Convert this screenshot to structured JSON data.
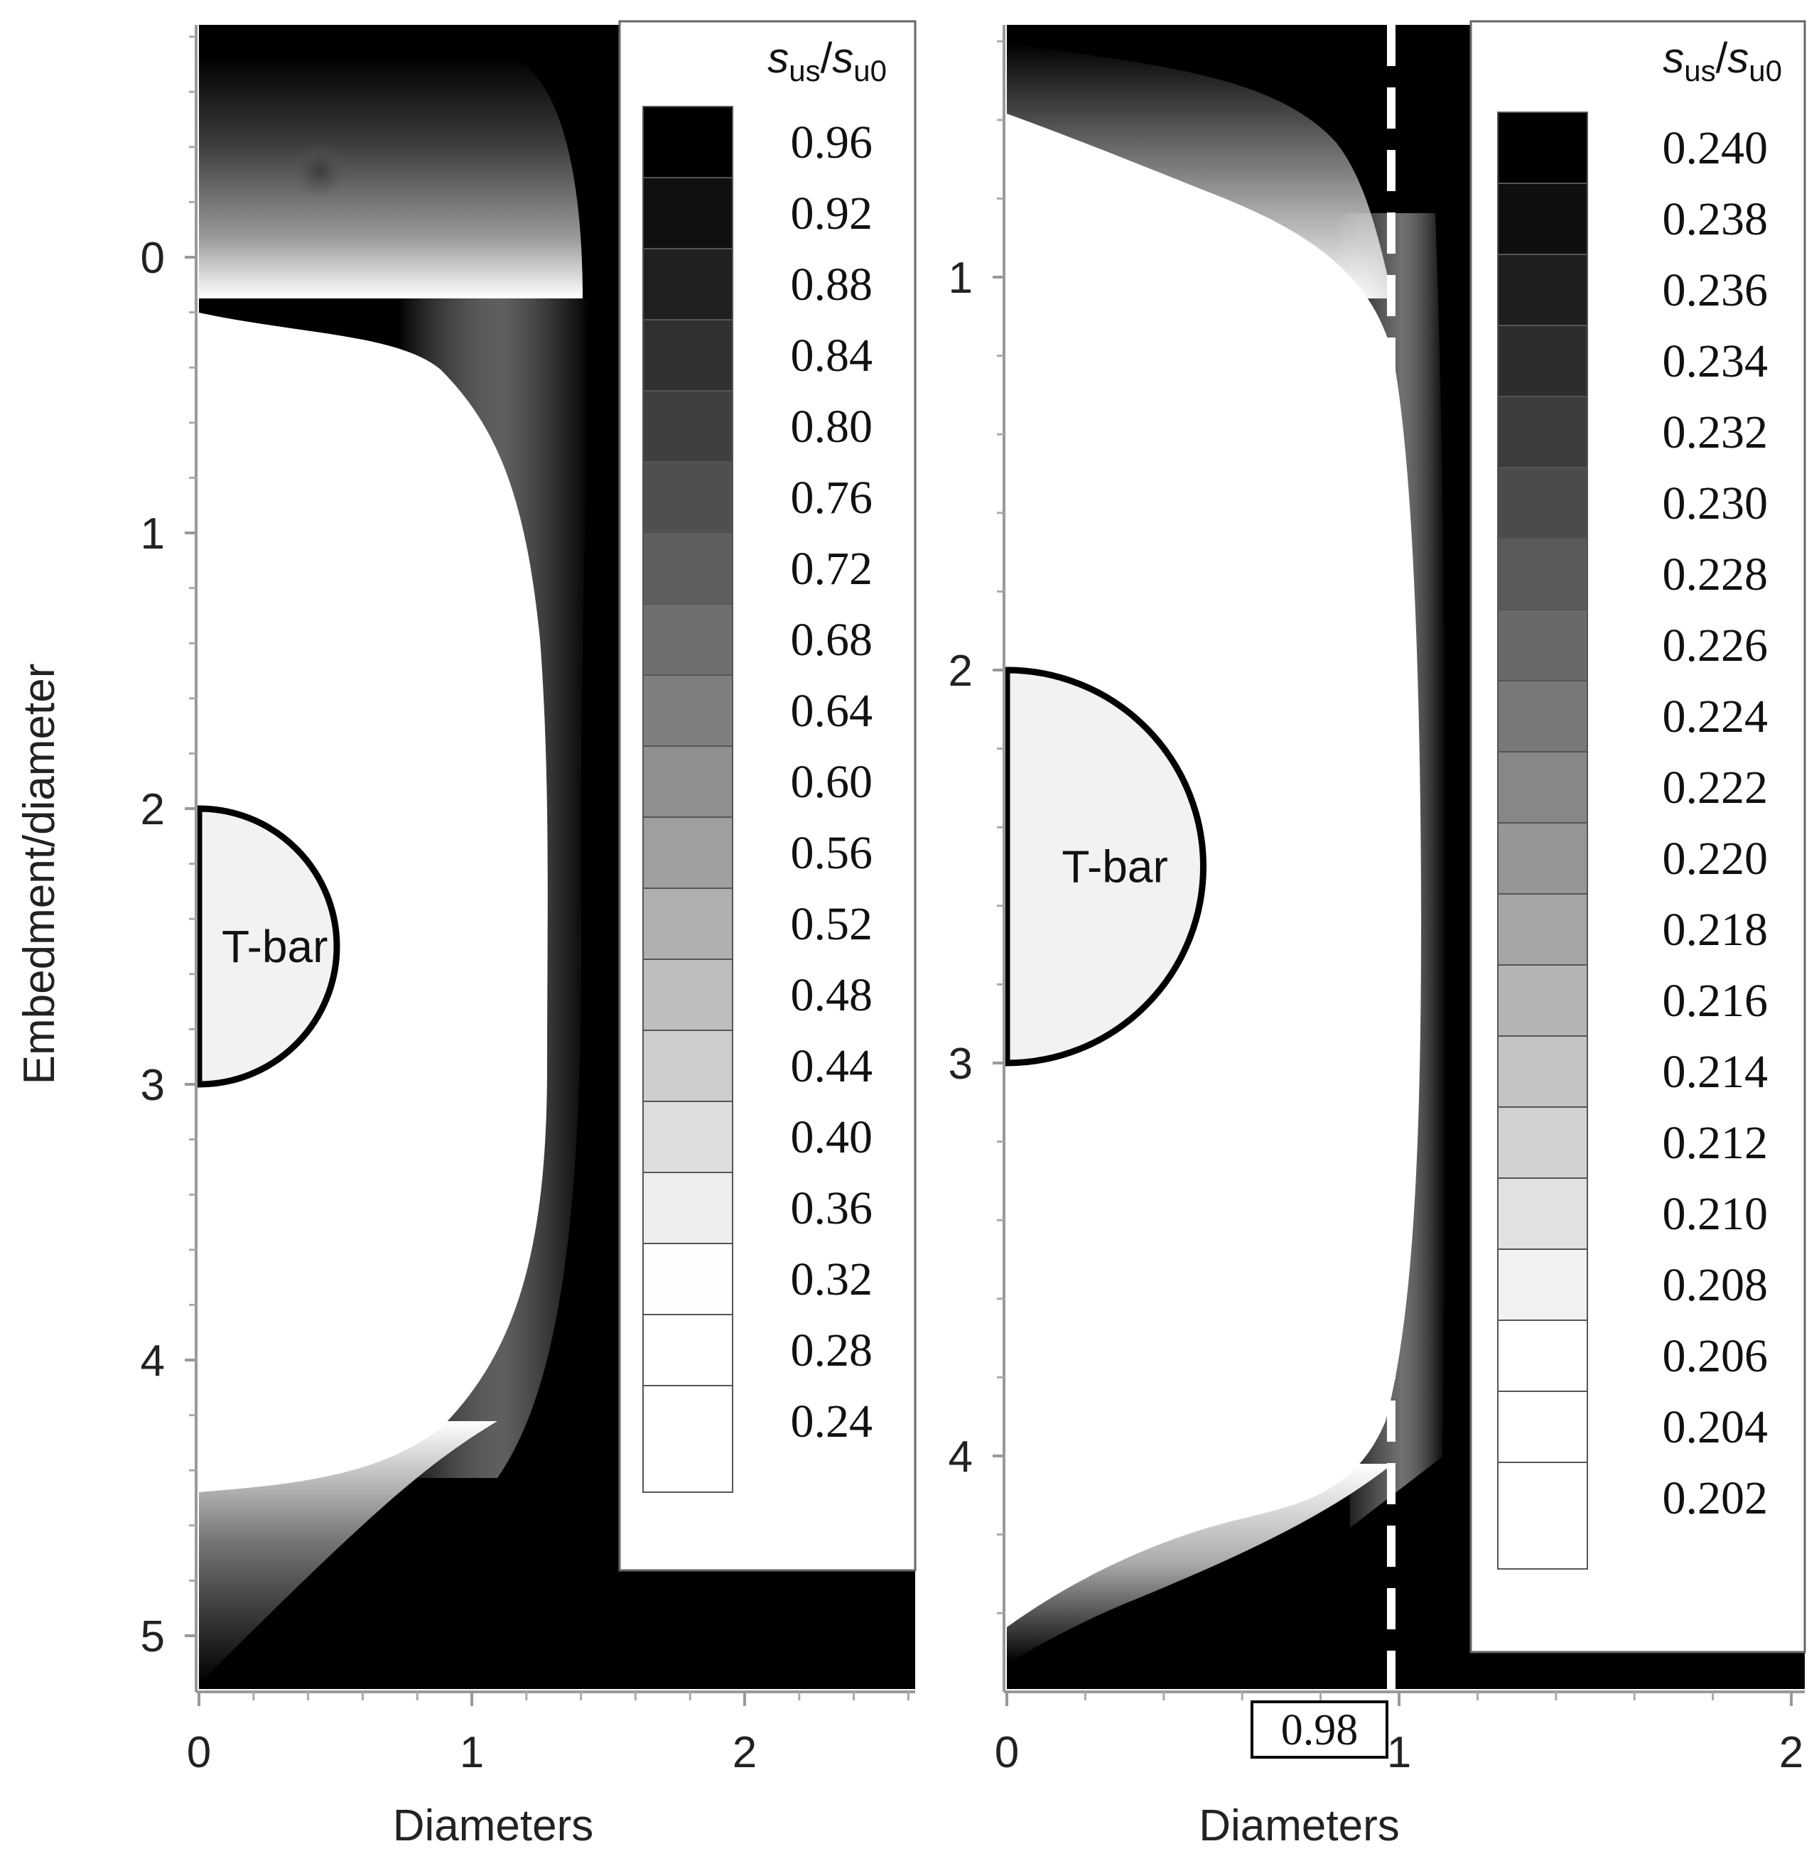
{
  "chart_data": [
    {
      "type": "contour",
      "panel": "left",
      "xlabel": "Diameters",
      "ylabel": "Embedment/diameter",
      "xlim": [
        0,
        2.6
      ],
      "ylim": [
        5.2,
        -0.8
      ],
      "xticks": [
        "0",
        "1",
        "2"
      ],
      "yticks": [
        "0",
        "1",
        "2",
        "3",
        "4",
        "5"
      ],
      "legend_title": {
        "main": "s",
        "sub1": "us",
        "slash": "/",
        "main2": "s",
        "sub2": "u0"
      },
      "levels": [
        "0.96",
        "0.92",
        "0.88",
        "0.84",
        "0.80",
        "0.76",
        "0.72",
        "0.68",
        "0.64",
        "0.60",
        "0.56",
        "0.52",
        "0.48",
        "0.44",
        "0.40",
        "0.36",
        "0.32",
        "0.28",
        "0.24"
      ],
      "tbar": {
        "label": "T-bar",
        "center_x": 0,
        "center_y": 2.5,
        "radius": 0.5
      }
    },
    {
      "type": "contour",
      "panel": "right",
      "xlabel": "Diameters",
      "ylabel": "",
      "xlim": [
        0,
        2.0
      ],
      "ylim": [
        4.6,
        0.6
      ],
      "xticks": [
        "0",
        "1",
        "2"
      ],
      "yticks": [
        "1",
        "2",
        "3",
        "4"
      ],
      "legend_title": {
        "main": "s",
        "sub1": "us",
        "slash": "/",
        "main2": "s",
        "sub2": "u0"
      },
      "levels": [
        "0.240",
        "0.238",
        "0.236",
        "0.234",
        "0.232",
        "0.230",
        "0.228",
        "0.226",
        "0.224",
        "0.222",
        "0.220",
        "0.218",
        "0.216",
        "0.214",
        "0.212",
        "0.210",
        "0.208",
        "0.206",
        "0.204",
        "0.202"
      ],
      "tbar": {
        "label": "T-bar",
        "center_x": 0,
        "center_y": 2.5,
        "radius": 0.5
      },
      "dashed_line_x": 0.98,
      "annotation": "0.98"
    }
  ]
}
